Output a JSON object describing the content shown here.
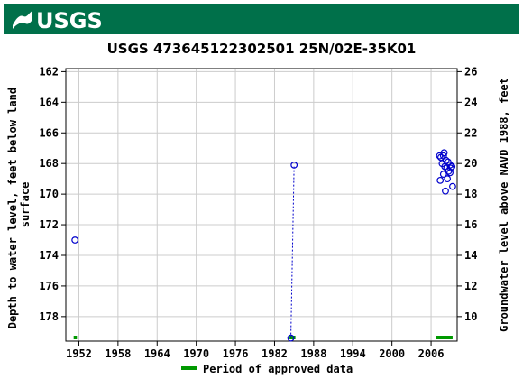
{
  "header": {
    "logo_text": "USGS",
    "brand_color": "#00704A"
  },
  "chart_data": {
    "type": "scatter",
    "title": "USGS 473645122302501 25N/02E-35K01",
    "ylabel_left": "Depth to water level, feet below land surface",
    "ylabel_left_lines": [
      "Depth to water level, feet below land",
      "surface"
    ],
    "ylabel_right": "Groundwater level above NAVD 1988, feet",
    "x_ticks": [
      1952,
      1958,
      1964,
      1970,
      1976,
      1982,
      1988,
      1994,
      2000,
      2006
    ],
    "xlim": [
      1950,
      2010
    ],
    "y_left_ticks": [
      162,
      164,
      166,
      168,
      170,
      172,
      174,
      176,
      178
    ],
    "ylim_left": [
      161.8,
      179.6
    ],
    "y_right_ticks": [
      10,
      12,
      14,
      16,
      18,
      20,
      22,
      24,
      26
    ],
    "right_offset": 188,
    "grid": true,
    "series": [
      {
        "marker": "circle",
        "color": "#0000CC",
        "points": [
          [
            1951.4,
            173.0
          ],
          [
            1984.5,
            179.4
          ],
          [
            1985.0,
            168.1
          ],
          [
            2007.3,
            167.5
          ],
          [
            2007.5,
            167.6
          ],
          [
            2007.7,
            168.0
          ],
          [
            2007.9,
            167.5
          ],
          [
            2008.0,
            167.3
          ],
          [
            2008.1,
            168.2
          ],
          [
            2008.3,
            167.8
          ],
          [
            2008.4,
            168.3
          ],
          [
            2008.6,
            167.9
          ],
          [
            2008.7,
            168.5
          ],
          [
            2008.9,
            168.1
          ],
          [
            2009.0,
            168.3
          ],
          [
            2009.2,
            168.2
          ],
          [
            2007.4,
            169.1
          ],
          [
            2007.9,
            168.7
          ],
          [
            2008.2,
            169.8
          ],
          [
            2008.5,
            169.0
          ],
          [
            2008.9,
            168.6
          ],
          [
            2009.3,
            169.5
          ]
        ],
        "connected_segment": [
          [
            1984.5,
            179.4
          ],
          [
            1985.0,
            168.1
          ]
        ]
      }
    ],
    "approved_periods": [
      [
        1951.2,
        1951.7
      ],
      [
        1984.3,
        1985.2
      ],
      [
        2006.8,
        2009.3
      ]
    ],
    "approved_color": "#009900",
    "legend": {
      "label": "Period of approved data",
      "position": "bottom-center"
    }
  }
}
